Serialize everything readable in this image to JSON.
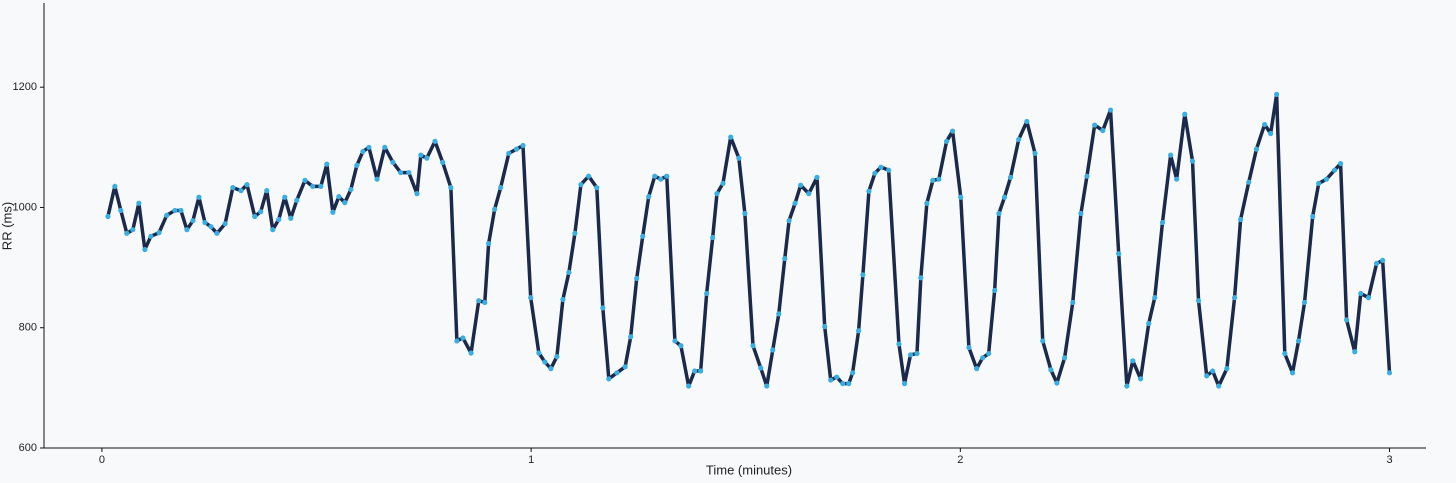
{
  "chart_data": {
    "type": "line",
    "x_label": "Time (minutes)",
    "y_label": "RR (ms)",
    "x": [
      0.014,
      0.03,
      0.044,
      0.058,
      0.072,
      0.086,
      0.1,
      0.114,
      0.133,
      0.151,
      0.17,
      0.184,
      0.198,
      0.212,
      0.226,
      0.24,
      0.254,
      0.268,
      0.287,
      0.305,
      0.324,
      0.338,
      0.356,
      0.37,
      0.384,
      0.398,
      0.412,
      0.426,
      0.44,
      0.454,
      0.473,
      0.491,
      0.51,
      0.524,
      0.538,
      0.552,
      0.566,
      0.58,
      0.594,
      0.608,
      0.622,
      0.641,
      0.659,
      0.678,
      0.696,
      0.715,
      0.734,
      0.743,
      0.757,
      0.776,
      0.794,
      0.813,
      0.827,
      0.841,
      0.86,
      0.878,
      0.892,
      0.901,
      0.915,
      0.929,
      0.948,
      0.966,
      0.981,
      0.999,
      1.018,
      1.032,
      1.046,
      1.06,
      1.074,
      1.088,
      1.102,
      1.116,
      1.134,
      1.153,
      1.167,
      1.181,
      1.2,
      1.219,
      1.232,
      1.246,
      1.26,
      1.274,
      1.288,
      1.302,
      1.316,
      1.335,
      1.349,
      1.367,
      1.381,
      1.395,
      1.409,
      1.423,
      1.433,
      1.447,
      1.465,
      1.484,
      1.498,
      1.517,
      1.535,
      1.549,
      1.563,
      1.577,
      1.591,
      1.601,
      1.615,
      1.628,
      1.647,
      1.666,
      1.684,
      1.698,
      1.712,
      1.726,
      1.74,
      1.749,
      1.763,
      1.773,
      1.787,
      1.801,
      1.815,
      1.833,
      1.857,
      1.87,
      1.884,
      1.899,
      1.908,
      1.922,
      1.936,
      1.95,
      1.968,
      1.982,
      2.001,
      2.02,
      2.038,
      2.052,
      2.066,
      2.08,
      2.09,
      2.103,
      2.117,
      2.136,
      2.155,
      2.174,
      2.192,
      2.211,
      2.225,
      2.243,
      2.262,
      2.281,
      2.295,
      2.313,
      2.332,
      2.35,
      2.369,
      2.388,
      2.402,
      2.42,
      2.439,
      2.453,
      2.471,
      2.49,
      2.504,
      2.523,
      2.541,
      2.555,
      2.574,
      2.588,
      2.602,
      2.621,
      2.639,
      2.653,
      2.672,
      2.69,
      2.709,
      2.723,
      2.737,
      2.756,
      2.774,
      2.788,
      2.802,
      2.821,
      2.835,
      2.853,
      2.872,
      2.886,
      2.9,
      2.919,
      2.933,
      2.951,
      2.97,
      2.984,
      3.0
    ],
    "series": [
      {
        "color": "#1b2a4a",
        "marker_color": "#3aaee0",
        "values": [
          985,
          1035,
          995,
          957,
          963,
          1007,
          930,
          952,
          958,
          987,
          995,
          995,
          963,
          978,
          1017,
          975,
          968,
          957,
          973,
          1033,
          1028,
          1038,
          985,
          993,
          1028,
          963,
          980,
          1017,
          982,
          1012,
          1045,
          1035,
          1035,
          1072,
          992,
          1018,
          1008,
          1030,
          1070,
          1093,
          1100,
          1047,
          1100,
          1075,
          1058,
          1058,
          1023,
          1087,
          1082,
          1110,
          1075,
          1033,
          778,
          783,
          758,
          845,
          842,
          940,
          997,
          1033,
          1090,
          1097,
          1103,
          850,
          758,
          743,
          732,
          752,
          847,
          892,
          957,
          1038,
          1052,
          1033,
          833,
          715,
          725,
          735,
          785,
          882,
          952,
          1018,
          1052,
          1047,
          1052,
          778,
          770,
          703,
          728,
          728,
          857,
          950,
          1023,
          1040,
          1117,
          1082,
          990,
          770,
          733,
          703,
          763,
          823,
          915,
          978,
          1007,
          1037,
          1023,
          1050,
          802,
          713,
          718,
          707,
          707,
          725,
          795,
          888,
          1027,
          1057,
          1067,
          1062,
          773,
          707,
          755,
          757,
          883,
          1007,
          1045,
          1047,
          1110,
          1127,
          1017,
          767,
          732,
          750,
          757,
          862,
          990,
          1017,
          1050,
          1113,
          1143,
          1090,
          778,
          730,
          708,
          750,
          842,
          990,
          1052,
          1137,
          1128,
          1162,
          923,
          703,
          745,
          715,
          807,
          850,
          975,
          1087,
          1047,
          1155,
          1077,
          845,
          720,
          728,
          703,
          732,
          850,
          980,
          1042,
          1097,
          1138,
          1123,
          1188,
          757,
          725,
          778,
          842,
          985,
          1040,
          1047,
          1062,
          1073,
          813,
          760,
          857,
          850,
          907,
          912,
          725
        ]
      }
    ],
    "xlim": [
      -0.135,
      3.085
    ],
    "ylim": [
      600,
      1340
    ],
    "xticks": [
      0,
      1,
      2,
      3
    ],
    "yticks": [
      600,
      800,
      1000,
      1200
    ]
  }
}
